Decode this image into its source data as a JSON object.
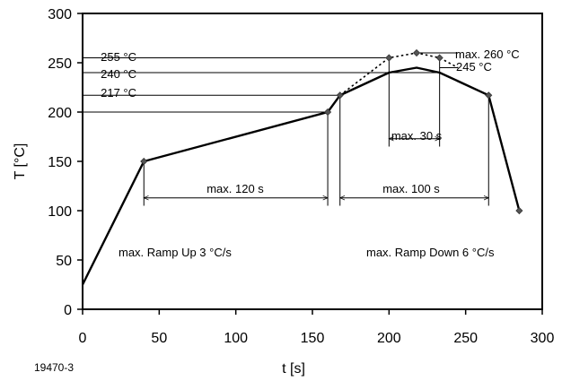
{
  "chart_data": {
    "type": "line",
    "title": "",
    "xlabel": "t [s]",
    "ylabel": "T [°C]",
    "xlim": [
      0,
      300
    ],
    "ylim": [
      0,
      300
    ],
    "xticks": [
      0,
      50,
      100,
      150,
      200,
      250,
      300
    ],
    "yticks": [
      0,
      50,
      100,
      150,
      200,
      250,
      300
    ],
    "grid": false,
    "figure_id": "19470-3",
    "series": [
      {
        "style": "solid",
        "x": [
          0,
          40,
          160,
          168,
          200,
          218,
          233,
          265,
          285
        ],
        "y": [
          25,
          150,
          200,
          217,
          240,
          245,
          240,
          217,
          100
        ]
      },
      {
        "style": "dotted",
        "x": [
          168,
          200,
          218,
          233,
          245
        ],
        "y": [
          217,
          255,
          260,
          255,
          245
        ]
      }
    ],
    "markers": [
      {
        "x": 40,
        "y": 150
      },
      {
        "x": 160,
        "y": 200
      },
      {
        "x": 168,
        "y": 217
      },
      {
        "x": 200,
        "y": 255
      },
      {
        "x": 218,
        "y": 260
      },
      {
        "x": 233,
        "y": 255
      },
      {
        "x": 265,
        "y": 217
      },
      {
        "x": 285,
        "y": 100
      }
    ],
    "annotations": {
      "level_255": "255 °C",
      "level_240": "240 °C",
      "level_217": "217 °C",
      "peak_max": "max. 260 °C",
      "level_245": "245 °C",
      "dur_120": "max. 120 s",
      "dur_100": "max. 100 s",
      "dur_30": "max. 30 s",
      "ramp_up": "max. Ramp Up 3 °C/s",
      "ramp_down": "max. Ramp Down 6 °C/s"
    }
  }
}
